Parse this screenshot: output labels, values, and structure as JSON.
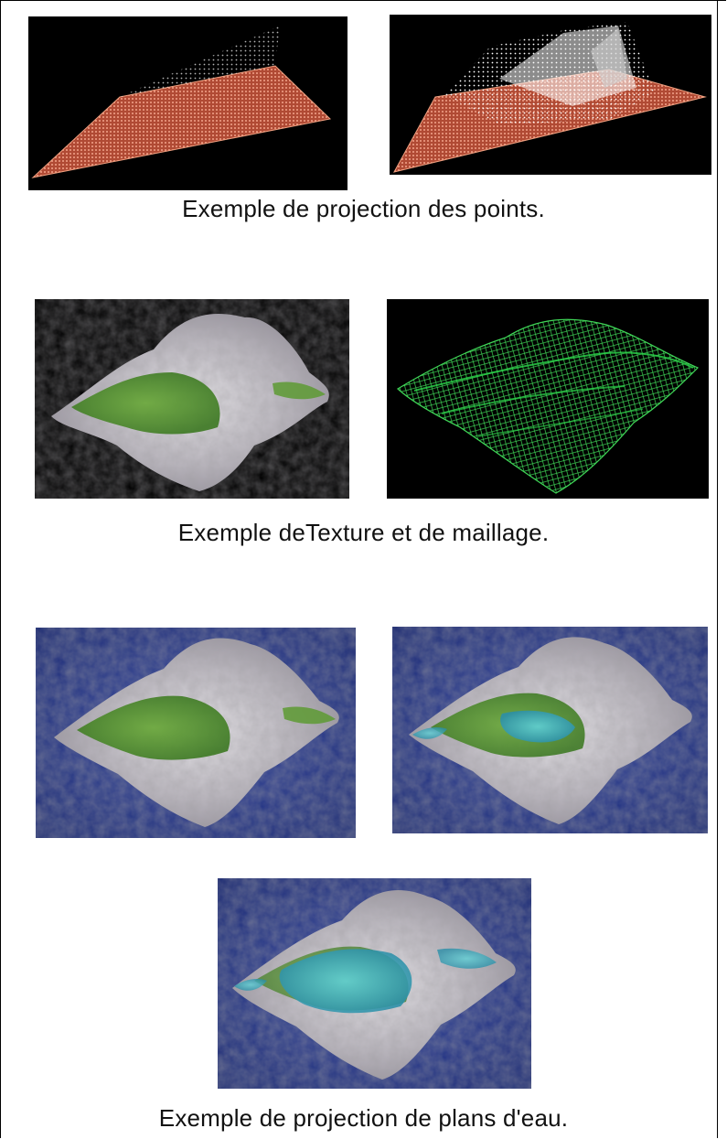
{
  "captions": {
    "projection_points": "Exemple de projection des points.",
    "texture_maillage": "Exemple deTexture et de maillage.",
    "plans_eau": "Exemple de projection de plans d'eau."
  },
  "colors": {
    "black_bg": "#000000",
    "ocean_blue": "#1b2f8c",
    "points_orange": "#e07a5a",
    "grass_green": "#4f8e2b",
    "rock_grey": "#c9c6cc",
    "mesh_green": "#37c94a",
    "water_cyan": "#3fb8c4"
  },
  "figures": [
    {
      "name": "points-flat-plane",
      "description_icon": "point-cloud-icon"
    },
    {
      "name": "points-projected-peak",
      "description_icon": "point-cloud-icon"
    },
    {
      "name": "textured-terrain",
      "description_icon": "terrain-icon"
    },
    {
      "name": "wireframe-terrain",
      "description_icon": "wireframe-icon"
    },
    {
      "name": "terrain-ocean-1",
      "description_icon": "terrain-icon"
    },
    {
      "name": "terrain-ocean-water-2",
      "description_icon": "terrain-icon"
    },
    {
      "name": "terrain-ocean-water-3",
      "description_icon": "terrain-icon"
    }
  ]
}
